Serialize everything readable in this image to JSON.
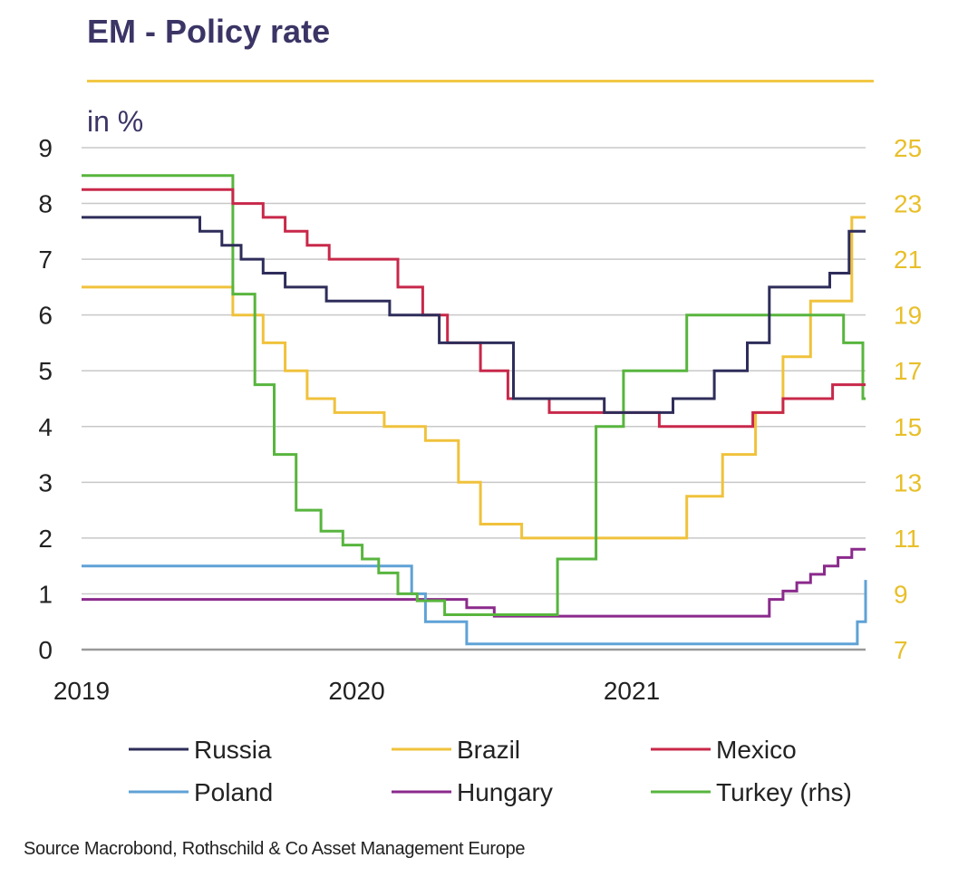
{
  "title": "EM - Policy rate",
  "unit_label": "in %",
  "source": "Source Macrobond, Rothschild & Co Asset Management Europe",
  "colors": {
    "title": "#3b3566",
    "rule": "#f2c744",
    "right_axis": "#e8bf2a",
    "grid": "#c8c8c8"
  },
  "chart_data": {
    "type": "line",
    "title": "EM - Policy rate",
    "ylabel": "in %",
    "x_ticks": [
      "2019",
      "2020",
      "2021"
    ],
    "x_range": [
      2019.0,
      2021.85
    ],
    "y_left": {
      "range": [
        0,
        9
      ],
      "ticks": [
        "0",
        "1",
        "2",
        "3",
        "4",
        "5",
        "6",
        "7",
        "8",
        "9"
      ]
    },
    "y_right": {
      "range": [
        7,
        25
      ],
      "ticks": [
        "7",
        "9",
        "11",
        "13",
        "15",
        "17",
        "19",
        "21",
        "23",
        "25"
      ]
    },
    "grid": true,
    "legend_position": "bottom",
    "series": [
      {
        "name": "Russia",
        "axis": "left",
        "color": "#2e2d5a",
        "x": [
          2019.0,
          2019.43,
          2019.51,
          2019.58,
          2019.66,
          2019.74,
          2019.82,
          2019.89,
          2019.97,
          2020.12,
          2020.3,
          2020.57,
          2020.9,
          2021.07,
          2021.15,
          2021.3,
          2021.42,
          2021.5,
          2021.6,
          2021.72,
          2021.79,
          2021.85
        ],
        "y": [
          7.75,
          7.5,
          7.25,
          7.0,
          6.75,
          6.5,
          6.5,
          6.25,
          6.25,
          6.0,
          5.5,
          4.5,
          4.25,
          4.25,
          4.5,
          5.0,
          5.5,
          6.5,
          6.5,
          6.75,
          7.5,
          7.5
        ]
      },
      {
        "name": "Brazil",
        "axis": "left",
        "color": "#f0c23c",
        "x": [
          2019.0,
          2019.55,
          2019.66,
          2019.74,
          2019.82,
          2019.92,
          2020.1,
          2020.25,
          2020.37,
          2020.45,
          2020.6,
          2021.0,
          2021.2,
          2021.33,
          2021.45,
          2021.55,
          2021.65,
          2021.72,
          2021.8,
          2021.85
        ],
        "y": [
          6.5,
          6.0,
          5.5,
          5.0,
          4.5,
          4.25,
          4.0,
          3.75,
          3.0,
          2.25,
          2.0,
          2.0,
          2.75,
          3.5,
          4.25,
          5.25,
          6.25,
          6.25,
          7.75,
          7.75
        ]
      },
      {
        "name": "Mexico",
        "axis": "left",
        "color": "#c8284a",
        "x": [
          2019.0,
          2019.55,
          2019.66,
          2019.74,
          2019.82,
          2019.9,
          2020.04,
          2020.15,
          2020.24,
          2020.33,
          2020.45,
          2020.55,
          2020.7,
          2021.1,
          2021.44,
          2021.55,
          2021.64,
          2021.73,
          2021.85
        ],
        "y": [
          8.25,
          8.0,
          7.75,
          7.5,
          7.25,
          7.0,
          7.0,
          6.5,
          6.0,
          5.5,
          5.0,
          4.5,
          4.25,
          4.0,
          4.25,
          4.5,
          4.5,
          4.75,
          4.75
        ]
      },
      {
        "name": "Poland",
        "axis": "left",
        "color": "#5fa2d6",
        "x": [
          2019.0,
          2020.2,
          2020.25,
          2020.4,
          2021.75,
          2021.82,
          2021.85
        ],
        "y": [
          1.5,
          1.0,
          0.5,
          0.1,
          0.1,
          0.5,
          1.25
        ],
        "step_start": 2020.2
      },
      {
        "name": "Hungary",
        "axis": "left",
        "color": "#8b2a8c",
        "x": [
          2019.0,
          2020.35,
          2020.4,
          2020.5,
          2021.45,
          2021.5,
          2021.55,
          2021.6,
          2021.65,
          2021.7,
          2021.75,
          2021.8,
          2021.85
        ],
        "y": [
          0.9,
          0.9,
          0.75,
          0.6,
          0.6,
          0.9,
          1.05,
          1.2,
          1.35,
          1.5,
          1.65,
          1.8,
          1.8
        ]
      },
      {
        "name": "Turkey (rhs)",
        "axis": "right",
        "color": "#58b53e",
        "x": [
          2019.0,
          2019.55,
          2019.63,
          2019.7,
          2019.78,
          2019.87,
          2019.95,
          2020.02,
          2020.08,
          2020.15,
          2020.22,
          2020.32,
          2020.73,
          2020.87,
          2020.97,
          2021.2,
          2021.77,
          2021.84,
          2021.85
        ],
        "y": [
          24.0,
          19.75,
          16.5,
          14.0,
          12.0,
          11.25,
          10.75,
          10.25,
          9.75,
          9.0,
          8.75,
          8.25,
          10.25,
          15.0,
          17.0,
          19.0,
          18.0,
          16.0,
          16.0
        ]
      }
    ]
  }
}
